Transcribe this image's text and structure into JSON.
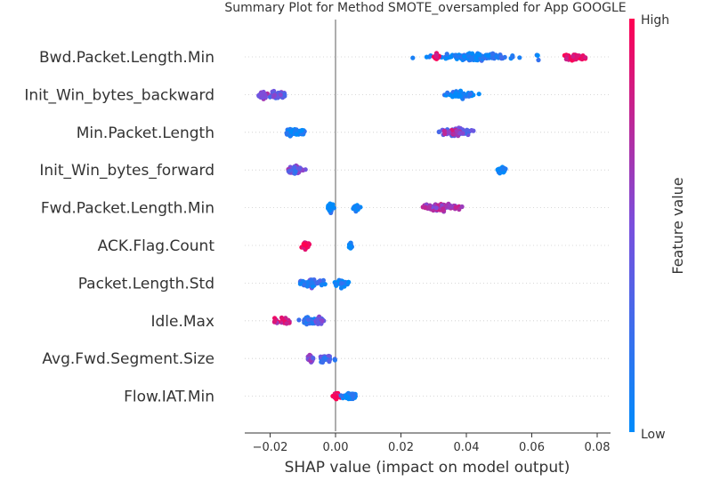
{
  "chart_data": {
    "type": "scatter",
    "title": "Summary Plot for Method SMOTE_oversampled for App GOOGLE",
    "xlabel": "SHAP value (impact on model output)",
    "xlim": [
      -0.028,
      0.082
    ],
    "xticks": [
      -0.02,
      0.0,
      0.02,
      0.04,
      0.06,
      0.08
    ],
    "xtick_labels": [
      "−0.02",
      "0.00",
      "0.02",
      "0.04",
      "0.06",
      "0.08"
    ],
    "zero_line": 0.0,
    "colorbar": {
      "label": "Feature value",
      "high_label": "High",
      "low_label": "Low",
      "high_color": "#ff0052",
      "low_color": "#008bfb"
    },
    "features": [
      {
        "name": "Bwd.Packet.Length.Min",
        "clusters": [
          {
            "center": 0.042,
            "spread": 0.0125,
            "count": 120,
            "value": 0.1
          },
          {
            "center": 0.042,
            "spread": 0.002,
            "count": 40,
            "value": 0.05
          },
          {
            "center": 0.031,
            "spread": 0.001,
            "count": 12,
            "value": 0.85
          },
          {
            "center": 0.0735,
            "spread": 0.004,
            "count": 35,
            "value": 0.9
          },
          {
            "center": 0.062,
            "spread": 0.001,
            "count": 3,
            "value": 0.1
          }
        ]
      },
      {
        "name": "Init_Win_bytes_backward",
        "clusters": [
          {
            "center": -0.022,
            "spread": 0.0015,
            "count": 40,
            "value": 0.55
          },
          {
            "center": -0.018,
            "spread": 0.0025,
            "count": 40,
            "value": 0.4
          },
          {
            "center": 0.038,
            "spread": 0.0055,
            "count": 60,
            "value": 0.08
          }
        ]
      },
      {
        "name": "Min.Packet.Length",
        "clusters": [
          {
            "center": -0.014,
            "spread": 0.001,
            "count": 45,
            "value": 0.05
          },
          {
            "center": -0.011,
            "spread": 0.0025,
            "count": 30,
            "value": 0.05
          },
          {
            "center": 0.037,
            "spread": 0.0055,
            "count": 70,
            "value": 0.35
          },
          {
            "center": 0.036,
            "spread": 0.003,
            "count": 25,
            "value": 0.7
          }
        ]
      },
      {
        "name": "Init_Win_bytes_forward",
        "clusters": [
          {
            "center": -0.012,
            "spread": 0.0025,
            "count": 60,
            "value": 0.5
          },
          {
            "center": -0.0125,
            "spread": 0.0005,
            "count": 25,
            "value": 0.35
          },
          {
            "center": 0.051,
            "spread": 0.0015,
            "count": 25,
            "value": 0.05
          }
        ]
      },
      {
        "name": "Fwd.Packet.Length.Min",
        "clusters": [
          {
            "center": -0.0015,
            "spread": 0.0008,
            "count": 45,
            "value": 0.05
          },
          {
            "center": 0.006,
            "spread": 0.0015,
            "count": 20,
            "value": 0.05
          },
          {
            "center": 0.0325,
            "spread": 0.0055,
            "count": 80,
            "value": 0.65
          }
        ]
      },
      {
        "name": "ACK.Flag.Count",
        "clusters": [
          {
            "center": -0.009,
            "spread": 0.0012,
            "count": 40,
            "value": 0.98
          },
          {
            "center": 0.0045,
            "spread": 0.0004,
            "count": 35,
            "value": 0.05
          }
        ]
      },
      {
        "name": "Packet.Length.Std",
        "clusters": [
          {
            "center": -0.0075,
            "spread": 0.0008,
            "count": 50,
            "value": 0.45
          },
          {
            "center": -0.0075,
            "spread": 0.004,
            "count": 60,
            "value": 0.15
          },
          {
            "center": 0.002,
            "spread": 0.0025,
            "count": 30,
            "value": 0.05
          }
        ]
      },
      {
        "name": "Idle.Max",
        "clusters": [
          {
            "center": -0.016,
            "spread": 0.0035,
            "count": 25,
            "value": 0.8
          },
          {
            "center": -0.008,
            "spread": 0.003,
            "count": 50,
            "value": 0.2
          },
          {
            "center": -0.005,
            "spread": 0.0015,
            "count": 40,
            "value": 0.45
          }
        ]
      },
      {
        "name": "Avg.Fwd.Segment.Size",
        "clusters": [
          {
            "center": -0.0075,
            "spread": 0.0008,
            "count": 40,
            "value": 0.5
          },
          {
            "center": -0.003,
            "spread": 0.0025,
            "count": 30,
            "value": 0.3
          }
        ]
      },
      {
        "name": "Flow.IAT.Min",
        "clusters": [
          {
            "center": 0.0005,
            "spread": 0.0012,
            "count": 25,
            "value": 0.95
          },
          {
            "center": 0.0045,
            "spread": 0.0022,
            "count": 70,
            "value": 0.1
          }
        ]
      }
    ]
  }
}
